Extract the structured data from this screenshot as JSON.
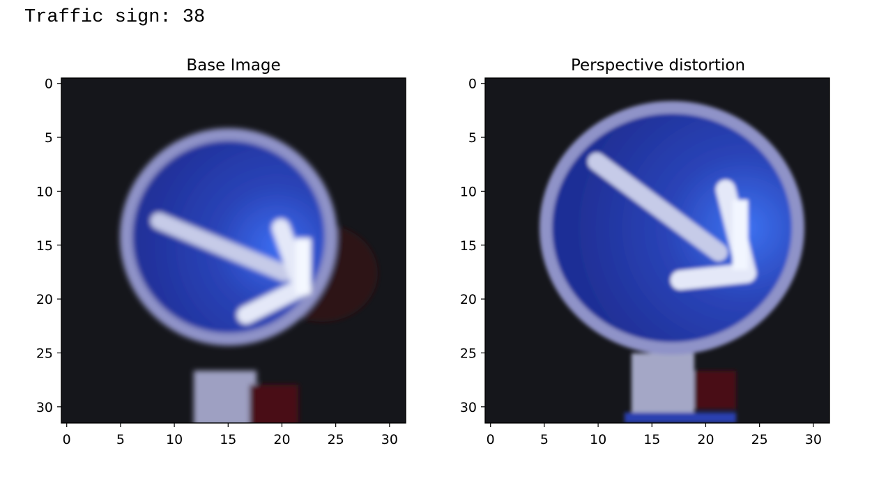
{
  "heading": "Traffic sign: 38",
  "panels": [
    {
      "title": "Base Image",
      "x_ticks": [
        "0",
        "5",
        "10",
        "15",
        "20",
        "25",
        "30"
      ],
      "y_ticks": [
        "0",
        "5",
        "10",
        "15",
        "20",
        "25",
        "30"
      ]
    },
    {
      "title": "Perspective distortion",
      "x_ticks": [
        "0",
        "5",
        "10",
        "15",
        "20",
        "25",
        "30"
      ],
      "y_ticks": [
        "0",
        "5",
        "10",
        "15",
        "20",
        "25",
        "30"
      ]
    }
  ],
  "colors": {
    "background": "#15161b",
    "sign_blue": "#2437a8",
    "sign_blue_bright": "#2e5ee6",
    "rim": "#8f93c8",
    "arrow": "#d8dcf2",
    "arrow_highlight": "#f2f6ff",
    "post_light": "#b8bbd8",
    "post_red": "#5a1216"
  }
}
